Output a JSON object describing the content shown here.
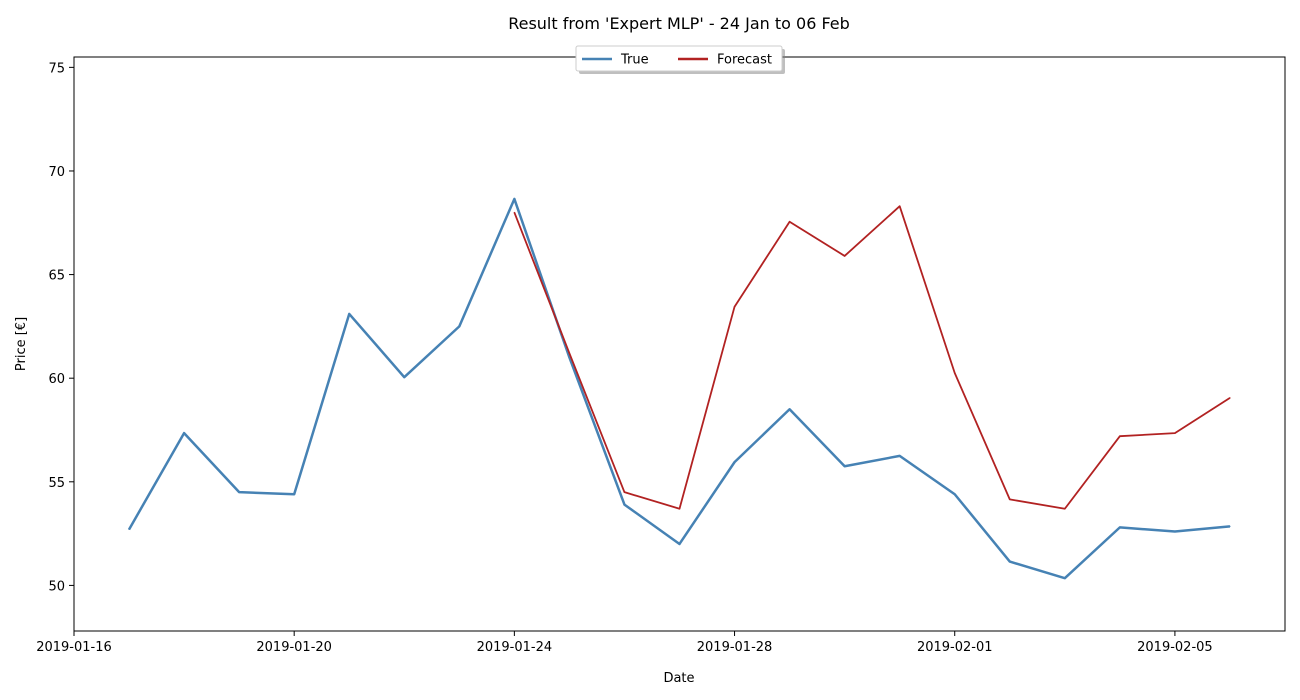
{
  "chart_data": {
    "type": "line",
    "title": "Result from 'Expert MLP' - 24 Jan to 06 Feb",
    "xlabel": "Date",
    "ylabel": "Price [€]",
    "xlim": [
      "2019-01-16",
      "2019-02-07"
    ],
    "ylim": [
      47.8,
      75.5
    ],
    "x_ticks": [
      "2019-01-16",
      "2019-01-20",
      "2019-01-24",
      "2019-01-28",
      "2019-02-01",
      "2019-02-05"
    ],
    "y_ticks": [
      50,
      55,
      60,
      65,
      70,
      75
    ],
    "grid": false,
    "legend": {
      "placement": "top-center",
      "columns": 2
    },
    "series": [
      {
        "name": "True",
        "color": "#4682b4",
        "x": [
          "2019-01-17",
          "2019-01-18",
          "2019-01-19",
          "2019-01-20",
          "2019-01-21",
          "2019-01-22",
          "2019-01-23",
          "2019-01-24",
          "2019-01-25",
          "2019-01-26",
          "2019-01-27",
          "2019-01-28",
          "2019-01-29",
          "2019-01-30",
          "2019-01-31",
          "2019-02-01",
          "2019-02-02",
          "2019-02-03",
          "2019-02-04",
          "2019-02-05",
          "2019-02-06"
        ],
        "values": [
          52.7,
          57.35,
          54.5,
          54.4,
          63.1,
          60.05,
          62.5,
          68.65,
          61.0,
          53.9,
          52.0,
          55.95,
          58.5,
          55.75,
          56.25,
          54.4,
          51.15,
          50.35,
          52.8,
          52.6,
          52.85
        ]
      },
      {
        "name": "Forecast",
        "color": "#b22222",
        "x": [
          "2019-01-24",
          "2019-01-25",
          "2019-01-26",
          "2019-01-27",
          "2019-01-28",
          "2019-01-29",
          "2019-01-30",
          "2019-01-31",
          "2019-02-01",
          "2019-02-02",
          "2019-02-03",
          "2019-02-04",
          "2019-02-05",
          "2019-02-06"
        ],
        "values": [
          68.0,
          61.2,
          54.5,
          53.7,
          63.45,
          67.55,
          65.9,
          68.3,
          60.25,
          54.15,
          53.7,
          57.2,
          57.35,
          59.05
        ]
      }
    ]
  }
}
